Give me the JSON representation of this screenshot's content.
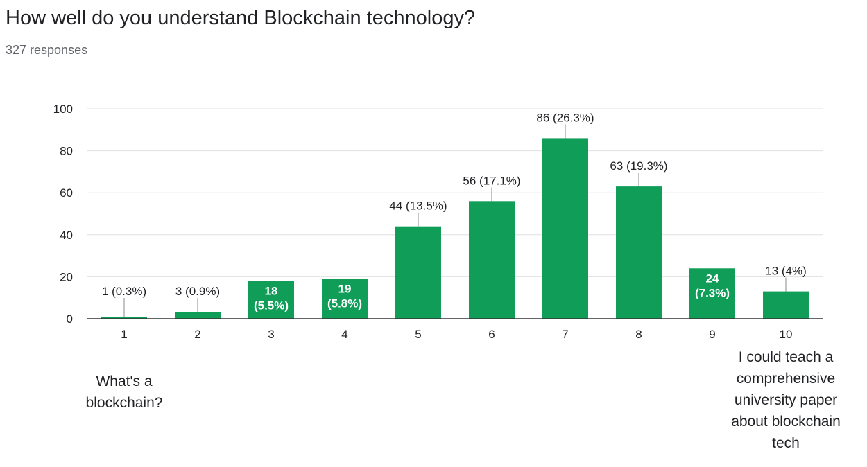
{
  "question": {
    "title": "How well do you understand Blockchain technology?",
    "response_count": "327 responses"
  },
  "colors": {
    "bar": "#0f9d58",
    "gridline": "#e0e0e0",
    "axis": "#333333"
  },
  "chart_data": {
    "type": "bar",
    "title": "",
    "xlabel": "",
    "ylabel": "",
    "categories": [
      "1",
      "2",
      "3",
      "4",
      "5",
      "6",
      "7",
      "8",
      "9",
      "10"
    ],
    "values": [
      1,
      3,
      18,
      19,
      44,
      56,
      86,
      63,
      24,
      13
    ],
    "data_labels": [
      "1 (0.3%)",
      "3 (0.9%)",
      "18 (5.5%)",
      "19 (5.8%)",
      "44 (13.5%)",
      "56 (17.1%)",
      "86 (26.3%)",
      "63 (19.3%)",
      "24 (7.3%)",
      "13 (4%)"
    ],
    "inside_labels": [
      null,
      null,
      [
        "18",
        "(5.5%)"
      ],
      [
        "19",
        "(5.8%)"
      ],
      null,
      null,
      null,
      null,
      [
        "24",
        "(7.3%)"
      ],
      null
    ],
    "y_ticks": [
      0,
      20,
      40,
      60,
      80,
      100
    ],
    "ylim": [
      0,
      100
    ],
    "grid": true,
    "low_label": [
      "What's a",
      "blockchain?"
    ],
    "high_label": [
      "I could teach a",
      "comprehensive",
      "university paper",
      "about blockchain",
      "tech"
    ]
  }
}
